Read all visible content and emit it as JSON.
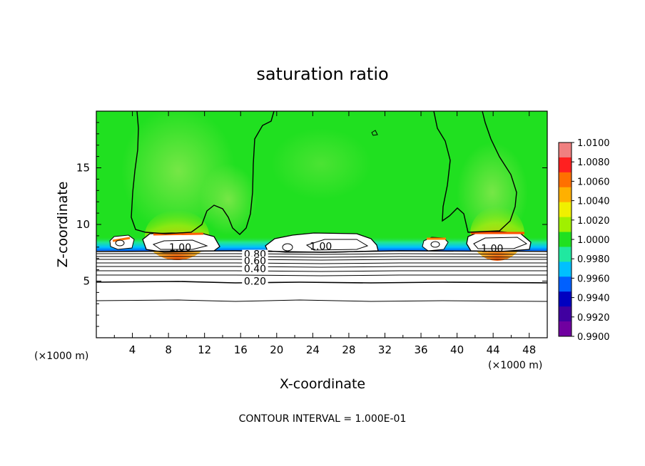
{
  "chart_data": {
    "type": "heatmap",
    "title": "saturation ratio",
    "xlabel": "X-coordinate",
    "ylabel": "Z-coordinate",
    "x_unit_left": "(×1000 m)",
    "x_unit_right": "(×1000 m)",
    "xlim": [
      0,
      50
    ],
    "ylim": [
      0,
      20
    ],
    "xticks": [
      4,
      8,
      12,
      16,
      20,
      24,
      28,
      32,
      36,
      40,
      44,
      48
    ],
    "yticks": [
      5,
      10,
      15
    ],
    "colorbar": {
      "ticks": [
        "1.0100",
        "1.0080",
        "1.0060",
        "1.0040",
        "1.0020",
        "1.0000",
        "0.9980",
        "0.9960",
        "0.9940",
        "0.9920",
        "0.9900"
      ],
      "colors": [
        "#f08080",
        "#ff2020",
        "#ff7000",
        "#ffb000",
        "#f0f000",
        "#a0f000",
        "#20e020",
        "#20e8a0",
        "#00c0ff",
        "#0060ff",
        "#0000c0",
        "#4000a0",
        "#7000a0"
      ]
    },
    "background_value": 0.9995,
    "contour_labels": [
      {
        "text": "1.00",
        "x": 9.3,
        "z": 7.8
      },
      {
        "text": "1.00",
        "x": 24.9,
        "z": 7.9
      },
      {
        "text": "1.00",
        "x": 43.9,
        "z": 7.7
      },
      {
        "text": "0.80",
        "x": 17.6,
        "z": 7.2
      },
      {
        "text": "0.60",
        "x": 17.6,
        "z": 6.6
      },
      {
        "text": "0.40",
        "x": 17.6,
        "z": 5.9
      },
      {
        "text": "0.20",
        "x": 17.6,
        "z": 4.8
      }
    ],
    "contour_interval_note": "CONTOUR INTERVAL = 1.000E-01"
  }
}
